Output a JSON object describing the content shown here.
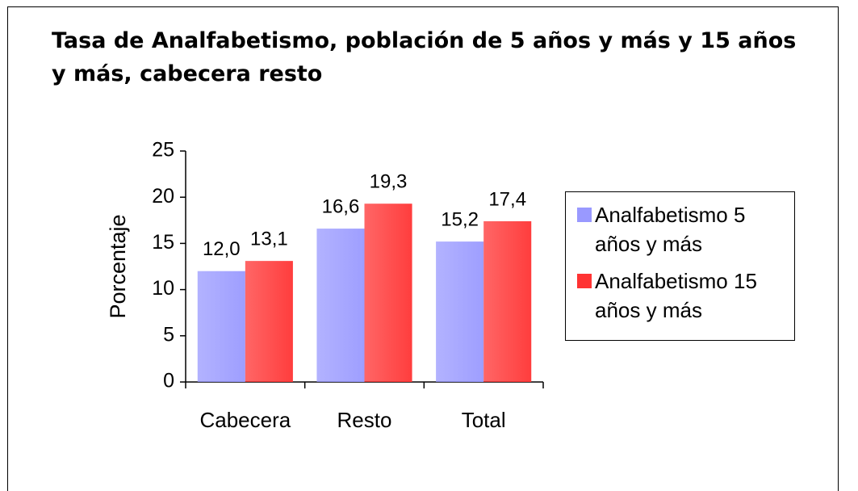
{
  "chart_data": {
    "type": "bar",
    "title": "Tasa de Analfabetismo, población de 5 años y más y 15 años y más, cabecera resto",
    "ylabel": "Porcentaje",
    "categories": [
      "Cabecera",
      "Resto",
      "Total"
    ],
    "series": [
      {
        "name": "Analfabetismo 5 años y más",
        "color": "#9999ff",
        "values": [
          12.0,
          16.6,
          15.2
        ],
        "value_labels": [
          "12,0",
          "16,6",
          "15,2"
        ]
      },
      {
        "name": "Analfabetismo 15 años y más",
        "color": "#ff3333",
        "values": [
          13.1,
          19.3,
          17.4
        ],
        "value_labels": [
          "13,1",
          "19,3",
          "17,4"
        ]
      }
    ],
    "ylim": [
      0,
      25
    ],
    "yticks": [
      0,
      5,
      10,
      15,
      20,
      25
    ],
    "grid": false,
    "legend": "right"
  }
}
